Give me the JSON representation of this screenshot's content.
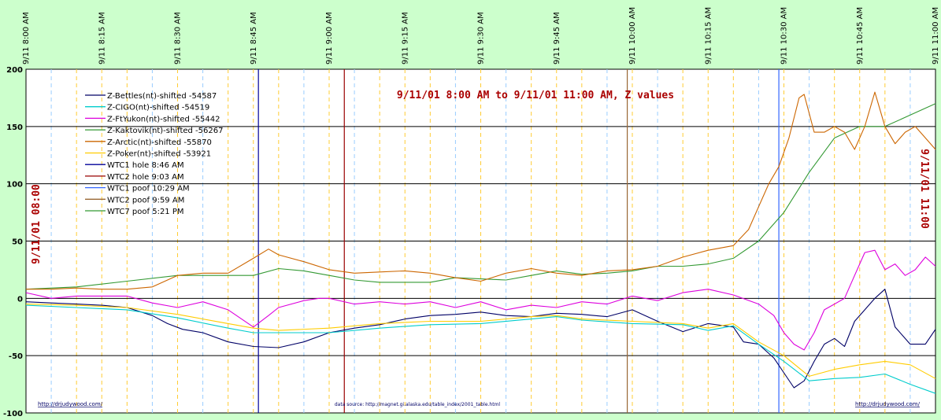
{
  "chart_data": {
    "type": "line",
    "title": "9/11/01 8:00 AM  to  9/11/01 11:00 AM, Z values",
    "side_label_left": "9/11/01 08:00",
    "side_label_right": "9/11/01 11:00",
    "x_axis": {
      "unit": "minutes after 8:00 AM",
      "range": [
        0,
        180
      ],
      "tick_labels": [
        {
          "x": 0,
          "label": "9/11 8:00 AM"
        },
        {
          "x": 15,
          "label": "9/11 8:15 AM"
        },
        {
          "x": 30,
          "label": "9/11 8:30 AM"
        },
        {
          "x": 45,
          "label": "9/11 8:45 AM"
        },
        {
          "x": 60,
          "label": "9/11 9:00 AM"
        },
        {
          "x": 75,
          "label": "9/11 9:15 AM"
        },
        {
          "x": 90,
          "label": "9/11 9:30 AM"
        },
        {
          "x": 105,
          "label": "9/11 9:45 AM"
        },
        {
          "x": 120,
          "label": "9/11 10:00 AM"
        },
        {
          "x": 135,
          "label": "9/11 10:15 AM"
        },
        {
          "x": 150,
          "label": "9/11 10:30 AM"
        },
        {
          "x": 165,
          "label": "9/11 10:45 AM"
        },
        {
          "x": 180,
          "label": "9/11 11:00 AM"
        }
      ]
    },
    "y_axis": {
      "range": [
        -100,
        200
      ],
      "ticks": [
        -100,
        -50,
        0,
        50,
        100,
        150,
        200
      ]
    },
    "grid": true,
    "legend_position": "top-left",
    "events": [
      {
        "name": "WTC1 hole 8:46 AM",
        "x": 46,
        "color": "#000099"
      },
      {
        "name": "WTC2 hole 9:03 AM",
        "x": 63,
        "color": "#990000"
      },
      {
        "name": "WTC1 poof 10:29 AM",
        "x": 149,
        "color": "#3366ff"
      },
      {
        "name": "WTC2 poof 9:59 AM",
        "x": 119,
        "color": "#996633"
      },
      {
        "name": "WTC7 poof 5:21 PM",
        "color": "#339933"
      }
    ],
    "series": [
      {
        "name": "Z-Bettles(nt)-shifted -54587",
        "color": "#000066",
        "x": [
          0,
          5,
          10,
          15,
          20,
          25,
          28,
          31,
          35,
          40,
          45,
          50,
          55,
          60,
          65,
          70,
          75,
          80,
          85,
          90,
          95,
          100,
          105,
          110,
          115,
          120,
          125,
          130,
          135,
          140,
          142,
          145,
          148,
          150,
          152,
          154,
          156,
          158,
          160,
          162,
          164,
          166,
          168,
          170,
          172,
          175,
          178,
          180
        ],
        "y": [
          -3,
          -4,
          -5,
          -6,
          -8,
          -15,
          -22,
          -27,
          -30,
          -38,
          -42,
          -43,
          -38,
          -30,
          -26,
          -23,
          -18,
          -15,
          -14,
          -12,
          -15,
          -16,
          -13,
          -14,
          -16,
          -10,
          -20,
          -29,
          -22,
          -25,
          -38,
          -40,
          -52,
          -65,
          -78,
          -72,
          -55,
          -40,
          -35,
          -42,
          -20,
          -10,
          0,
          8,
          -25,
          -40,
          -40,
          -27
        ]
      },
      {
        "name": "Z-CIGO(nt)-shifted -54519",
        "color": "#00cccc",
        "x": [
          0,
          10,
          20,
          30,
          40,
          45,
          50,
          60,
          70,
          80,
          90,
          100,
          105,
          110,
          120,
          130,
          135,
          140,
          145,
          150,
          155,
          160,
          165,
          170,
          175,
          180
        ],
        "y": [
          -6,
          -8,
          -10,
          -17,
          -26,
          -30,
          -30,
          -30,
          -26,
          -23,
          -22,
          -18,
          -16,
          -19,
          -22,
          -23,
          -28,
          -24,
          -40,
          -55,
          -72,
          -70,
          -69,
          -66,
          -75,
          -83
        ]
      },
      {
        "name": "Z-FtYukon(nt)-shifted -55442",
        "color": "#dd00dd",
        "x": [
          0,
          5,
          10,
          20,
          25,
          30,
          35,
          40,
          45,
          48,
          50,
          55,
          58,
          60,
          65,
          70,
          75,
          80,
          85,
          90,
          95,
          100,
          105,
          110,
          115,
          120,
          125,
          130,
          135,
          140,
          145,
          148,
          150,
          152,
          154,
          156,
          158,
          160,
          162,
          164,
          166,
          168,
          170,
          172,
          174,
          176,
          178,
          180
        ],
        "y": [
          5,
          0,
          2,
          2,
          -4,
          -8,
          -3,
          -10,
          -25,
          -15,
          -8,
          -2,
          0,
          0,
          -5,
          -3,
          -5,
          -3,
          -8,
          -3,
          -10,
          -6,
          -8,
          -3,
          -5,
          2,
          -2,
          5,
          8,
          3,
          -5,
          -15,
          -30,
          -40,
          -45,
          -30,
          -10,
          -5,
          0,
          20,
          40,
          42,
          25,
          30,
          20,
          25,
          36,
          28
        ]
      },
      {
        "name": "Z-Kaktovik(nt)-shifted -56267",
        "color": "#339933",
        "x": [
          0,
          10,
          20,
          30,
          40,
          45,
          50,
          55,
          60,
          65,
          70,
          75,
          80,
          85,
          90,
          95,
          100,
          105,
          110,
          115,
          120,
          125,
          130,
          135,
          140,
          145,
          150,
          155,
          160,
          165,
          170,
          175,
          180
        ],
        "y": [
          8,
          10,
          15,
          20,
          20,
          20,
          26,
          24,
          20,
          16,
          14,
          14,
          14,
          18,
          17,
          16,
          20,
          24,
          21,
          22,
          24,
          28,
          28,
          30,
          35,
          50,
          75,
          110,
          140,
          150,
          150,
          160,
          170
        ]
      },
      {
        "name": "Z-Arctic(nt)-shifted -55870",
        "color": "#cc6600",
        "x": [
          0,
          5,
          10,
          15,
          20,
          25,
          30,
          35,
          40,
          45,
          48,
          50,
          55,
          60,
          65,
          70,
          75,
          80,
          85,
          90,
          95,
          100,
          105,
          110,
          115,
          120,
          125,
          130,
          135,
          140,
          143,
          145,
          147,
          149,
          151,
          153,
          154,
          156,
          158,
          160,
          162,
          164,
          166,
          168,
          170,
          172,
          174,
          176,
          178,
          180
        ],
        "y": [
          8,
          8,
          9,
          8,
          8,
          10,
          20,
          22,
          22,
          35,
          43,
          38,
          32,
          25,
          22,
          23,
          24,
          22,
          18,
          15,
          22,
          26,
          22,
          20,
          24,
          25,
          28,
          36,
          42,
          46,
          60,
          80,
          100,
          115,
          140,
          175,
          178,
          145,
          145,
          150,
          145,
          130,
          150,
          180,
          150,
          135,
          145,
          150,
          140,
          130
        ]
      },
      {
        "name": "Z-Poker(nt)-shifted -53921",
        "color": "#ffcc00",
        "x": [
          0,
          10,
          20,
          30,
          40,
          45,
          50,
          60,
          70,
          80,
          90,
          100,
          105,
          110,
          120,
          130,
          135,
          140,
          145,
          150,
          155,
          160,
          165,
          170,
          175,
          180
        ],
        "y": [
          -5,
          -6,
          -8,
          -14,
          -22,
          -26,
          -28,
          -26,
          -22,
          -20,
          -20,
          -16,
          -15,
          -18,
          -20,
          -22,
          -26,
          -22,
          -38,
          -50,
          -68,
          -62,
          -58,
          -55,
          -58,
          -70
        ]
      }
    ],
    "footer_left": "http://drjudywood.com/",
    "footer_center": "data source: http://magnet.gi.alaska.edu/table_index/2001_table.html",
    "footer_right": "http://drjudywood.com/"
  }
}
